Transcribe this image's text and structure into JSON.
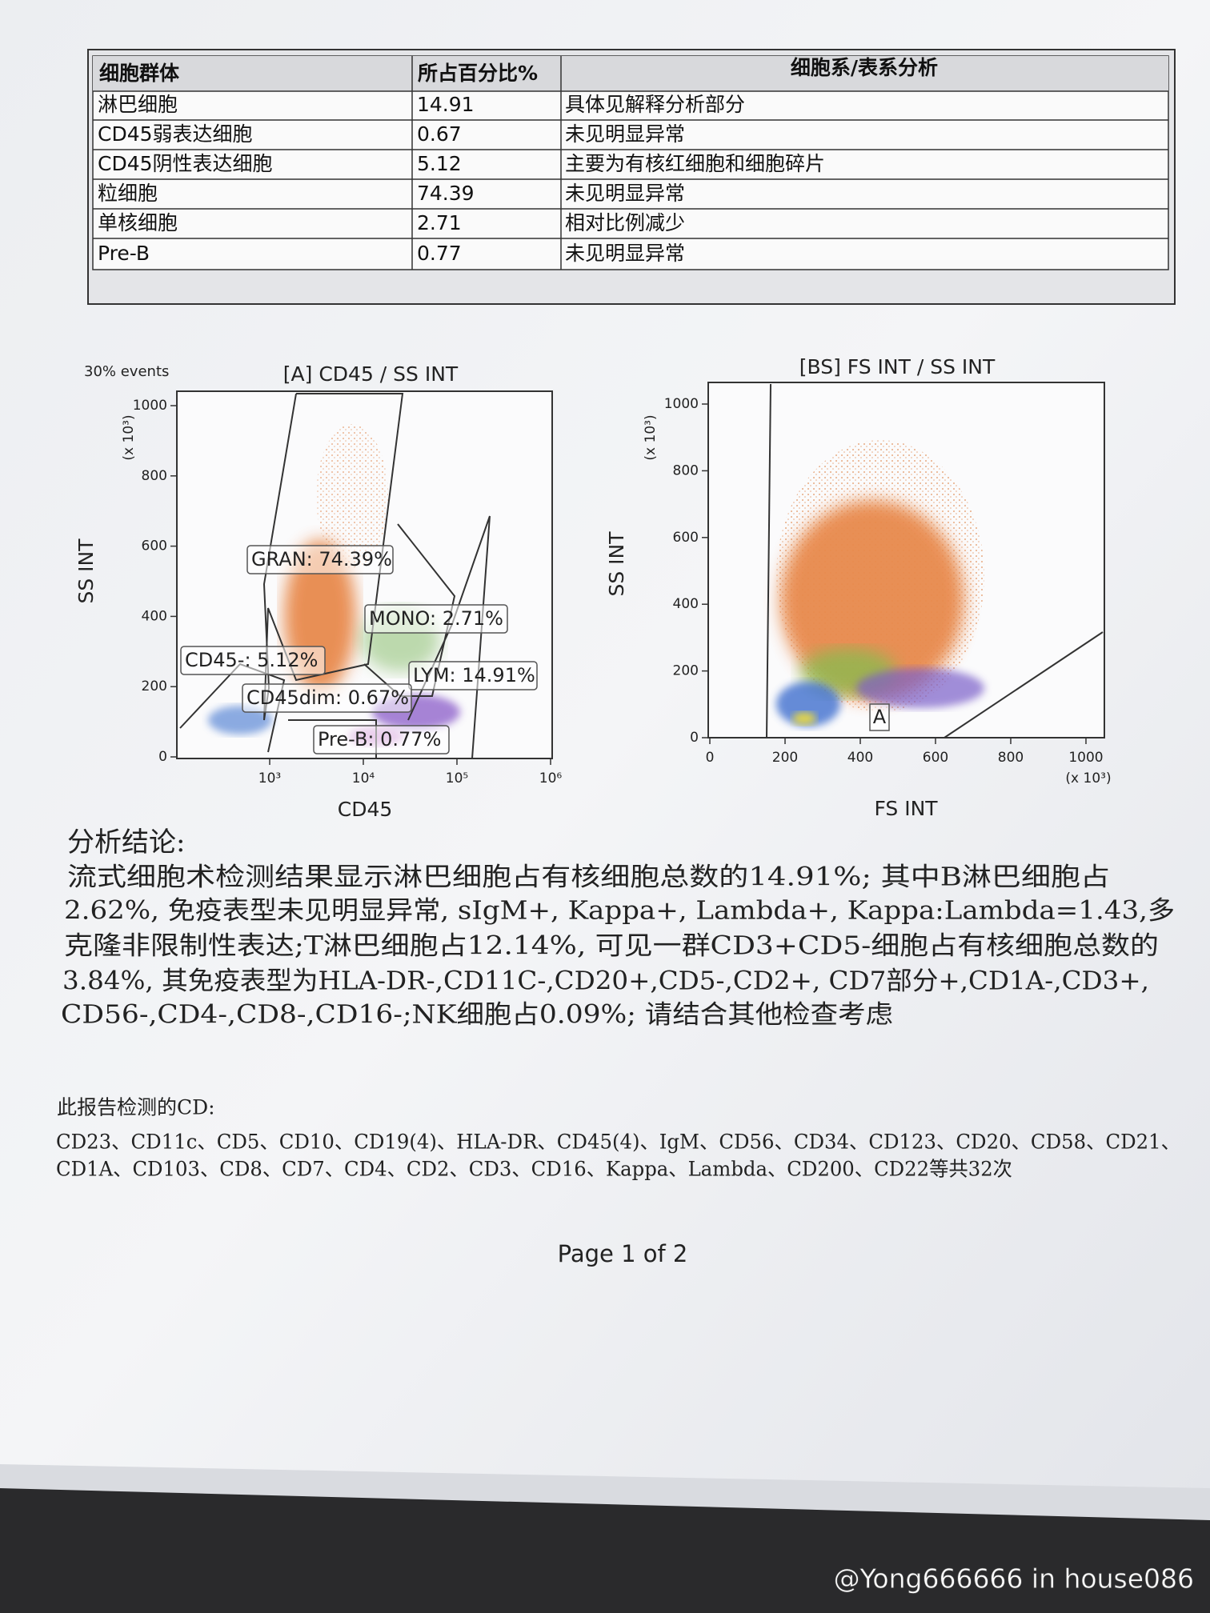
{
  "table": {
    "headers": [
      "细胞群体",
      "所占百分比%",
      "细胞系/表系分析"
    ],
    "rows": [
      [
        "淋巴细胞",
        "14.91",
        "具体见解释分析部分"
      ],
      [
        "CD45弱表达细胞",
        "0.67",
        "未见明显异常"
      ],
      [
        "CD45阴性表达细胞",
        "5.12",
        "主要为有核红细胞和细胞碎片"
      ],
      [
        "粒细胞",
        "74.39",
        "未见明显异常"
      ],
      [
        "单核细胞",
        "2.71",
        "相对比例减少"
      ],
      [
        "Pre-B",
        "0.77",
        "未见明显异常"
      ]
    ]
  },
  "plots": [
    {
      "note": "30% events",
      "title": "[A] CD45 / SS INT",
      "y_label": "SS INT",
      "y_unit": "(x 10³)",
      "yticks": [
        0,
        200,
        400,
        600,
        800,
        1000
      ],
      "x_label": "CD45",
      "xticks": [
        "10³",
        "10⁴",
        "10⁵",
        "10⁶"
      ],
      "gates": [
        "GRAN: 74.39%",
        "MONO: 2.71%",
        "CD45-: 5.12%",
        "LYM: 14.91%",
        "CD45dim: 0.67%",
        "Pre-B: 0.77%"
      ]
    },
    {
      "title": "[BS] FS INT / SS INT",
      "y_label": "SS INT",
      "y_unit": "(x 10³)",
      "yticks": [
        0,
        200,
        400,
        600,
        800,
        1000
      ],
      "x_label": "FS INT",
      "x_unit": "(x 10³)",
      "xticks": [
        0,
        200,
        400,
        600,
        800,
        1000
      ],
      "gates": [
        "A"
      ]
    }
  ],
  "conclusion": {
    "title": "分析结论:",
    "lines": [
      "流式细胞术检测结果显示淋巴细胞占有核细胞总数的14.91%; 其中B淋巴细胞占",
      "2.62%, 免疫表型未见明显异常, sIgM+, Kappa+, Lambda+, Kappa:Lambda=1.43,多",
      "克隆非限制性表达;T淋巴细胞占12.14%, 可见一群CD3+CD5-细胞占有核细胞总数的",
      "3.84%, 其免疫表型为HLA-DR-,CD11C-,CD20+,CD5-,CD2+, CD7部分+,CD1A-,CD3+,",
      "CD56-,CD4-,CD8-,CD16-;NK细胞占0.09%; 请结合其他检查考虑"
    ]
  },
  "cd_list": {
    "title": "此报告检测的CD:",
    "lines": [
      "CD23、CD11c、CD5、CD10、CD19(4)、HLA-DR、CD45(4)、IgM、CD56、CD34、CD123、CD20、CD58、CD21、",
      "CD1A、CD103、CD8、CD7、CD4、CD2、CD3、CD16、Kappa、Lambda、CD200、CD22等共32次"
    ]
  },
  "footer": "Page 1 of 2",
  "watermark": "@Yong666666 in house086"
}
